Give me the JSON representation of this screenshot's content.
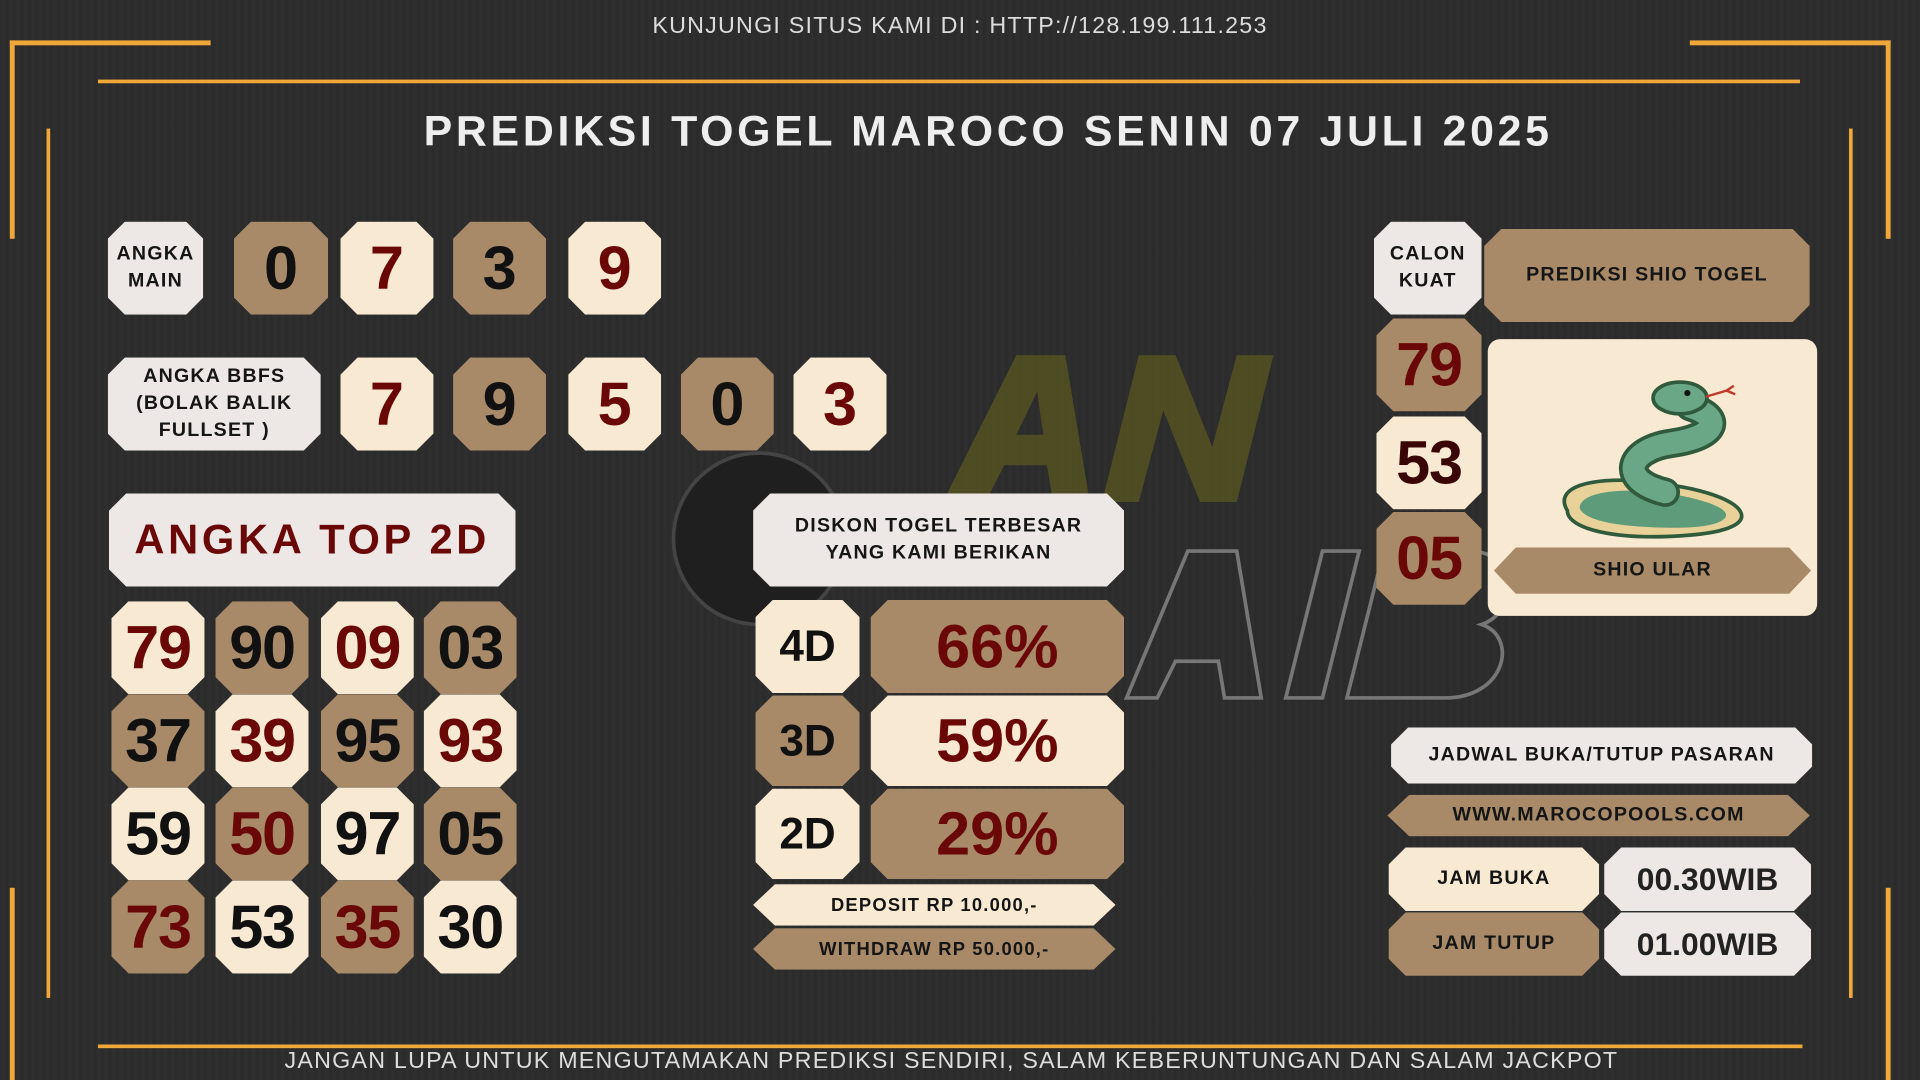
{
  "header": {
    "visit_text": "KUNJUNGI SITUS KAMI DI : HTTP://128.199.111.253",
    "title": "PREDIKSI TOGEL MAROCO SENIN 07 JULI 2025"
  },
  "watermark_text": "ANGKA GAIB",
  "angka_main": {
    "label": "ANGKA MAIN",
    "digits": [
      "0",
      "7",
      "3",
      "9"
    ]
  },
  "bbfs": {
    "label": "ANGKA BBFS (BOLAK BALIK FULLSET )",
    "digits": [
      "7",
      "9",
      "5",
      "0",
      "3"
    ]
  },
  "top2d": {
    "label": "ANGKA TOP 2D",
    "rows": [
      [
        "79",
        "90",
        "09",
        "03"
      ],
      [
        "37",
        "39",
        "95",
        "93"
      ],
      [
        "59",
        "50",
        "97",
        "05"
      ],
      [
        "73",
        "53",
        "35",
        "30"
      ]
    ]
  },
  "diskon": {
    "header": "DISKON TOGEL TERBESAR YANG KAMI BERIKAN",
    "rows": [
      {
        "type": "4D",
        "value": "66%"
      },
      {
        "type": "3D",
        "value": "59%"
      },
      {
        "type": "2D",
        "value": "29%"
      }
    ],
    "deposit": "DEPOSIT RP 10.000,-",
    "withdraw": "WITHDRAW RP 50.000,-"
  },
  "calon_kuat": {
    "label": "CALON KUAT",
    "numbers": [
      "79",
      "53",
      "05"
    ]
  },
  "shio": {
    "header": "PREDIKSI SHIO TOGEL",
    "name": "SHIO ULAR",
    "icon": "snake-icon"
  },
  "jadwal": {
    "header": "JADWAL BUKA/TUTUP PASARAN",
    "website": "WWW.MAROCOPOOLS.COM",
    "buka_label": "JAM BUKA",
    "buka_value": "00.30WIB",
    "tutup_label": "JAM TUTUP",
    "tutup_value": "01.00WIB"
  },
  "footer": {
    "text": "JANGAN LUPA UNTUK MENGUTAMAKAN PREDIKSI SENDIRI, SALAM KEBERUNTUNGAN DAN SALAM JACKPOT"
  },
  "colors": {
    "gold": "#f0a73a",
    "cream": "#f8e9d2",
    "brown": "#a88a68",
    "light": "#ede7e5",
    "dark_red": "#6a0808",
    "background": "#2c2c2c"
  }
}
